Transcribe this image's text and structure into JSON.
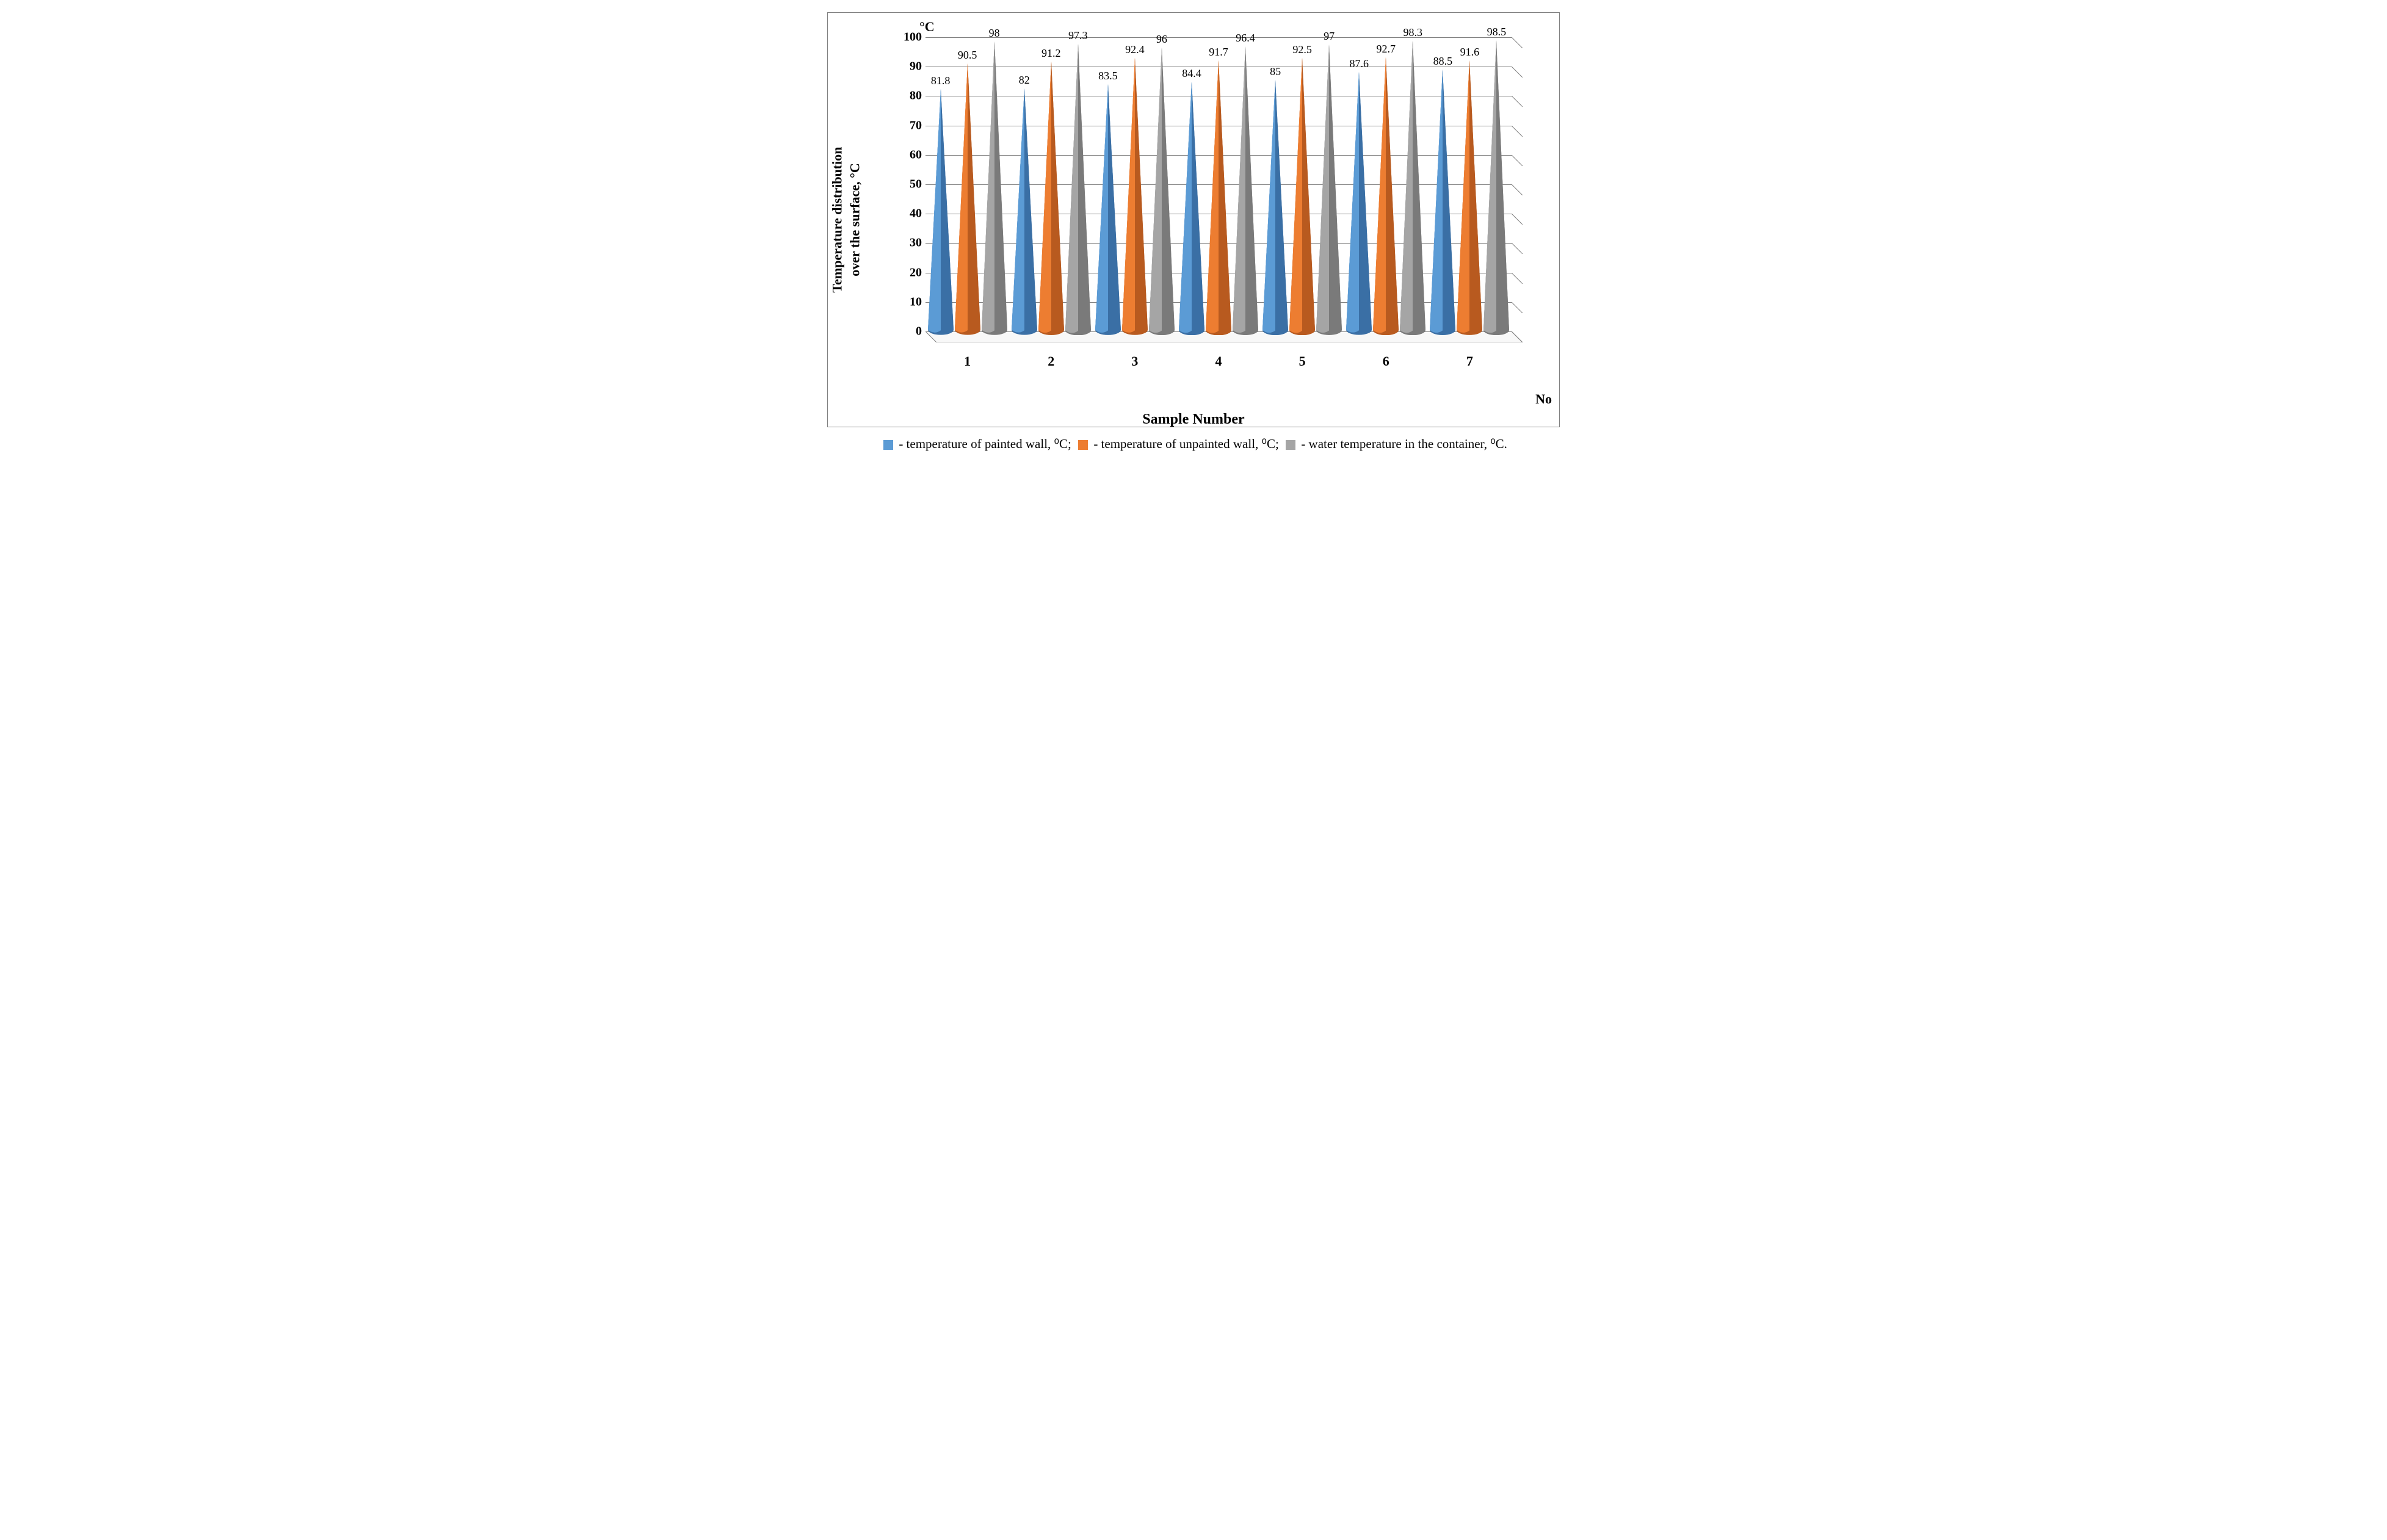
{
  "chart": {
    "type": "3d-cone-bar",
    "unit_label_top": "°C",
    "yaxis_title_line1": "Temperature distribution",
    "yaxis_title_line2": "over the surface, °C",
    "xaxis_title": "Sample Number",
    "xaxis_unit_label": "No",
    "ylim": [
      0,
      100
    ],
    "ytick_step": 10,
    "yticks": [
      "0",
      "10",
      "20",
      "30",
      "40",
      "50",
      "60",
      "70",
      "80",
      "90",
      "100"
    ],
    "categories": [
      "1",
      "2",
      "3",
      "4",
      "5",
      "6",
      "7"
    ],
    "series": [
      {
        "name": "painted",
        "label": "temperature of painted wall, ⁰C",
        "color_light": "#5b9bd5",
        "color_dark": "#3a6fa5",
        "values": [
          81.8,
          82,
          83.5,
          84.4,
          85,
          87.6,
          88.5
        ],
        "display": [
          "81.8",
          "82",
          "83.5",
          "84.4",
          "85",
          "87.6",
          "88.5"
        ]
      },
      {
        "name": "unpainted",
        "label": "temperature of unpainted wall, ⁰C",
        "color_light": "#ed7d31",
        "color_dark": "#b85a1f",
        "values": [
          90.5,
          91.2,
          92.4,
          91.7,
          92.5,
          92.7,
          91.6
        ],
        "display": [
          "90.5",
          "91.2",
          "92.4",
          "91.7",
          "92.5",
          "92.7",
          "91.6"
        ]
      },
      {
        "name": "water",
        "label": "water temperature in the container, ⁰C",
        "color_light": "#a5a5a5",
        "color_dark": "#7a7a7a",
        "values": [
          98,
          97.3,
          96,
          96.4,
          97,
          98.3,
          98.5
        ],
        "display": [
          "98",
          "97.3",
          "96",
          "96.4",
          "97",
          "98.3",
          "98.5"
        ]
      }
    ],
    "styling": {
      "background_color": "#ffffff",
      "grid_color": "#808080",
      "border_color": "#808080",
      "cone_base_width": 42,
      "group_gap": 30,
      "font_family": "Palatino, serif",
      "tick_fontsize": 20,
      "label_fontsize": 18,
      "axis_title_fontsize": 24,
      "depth_offset": 18
    },
    "legend": {
      "prefix": " - ",
      "text_parts": [
        " - temperature of painted wall, ⁰C; ",
        " - temperature of unpainted wall, ⁰C; ",
        " - water temperature in the container, ⁰C."
      ]
    }
  }
}
